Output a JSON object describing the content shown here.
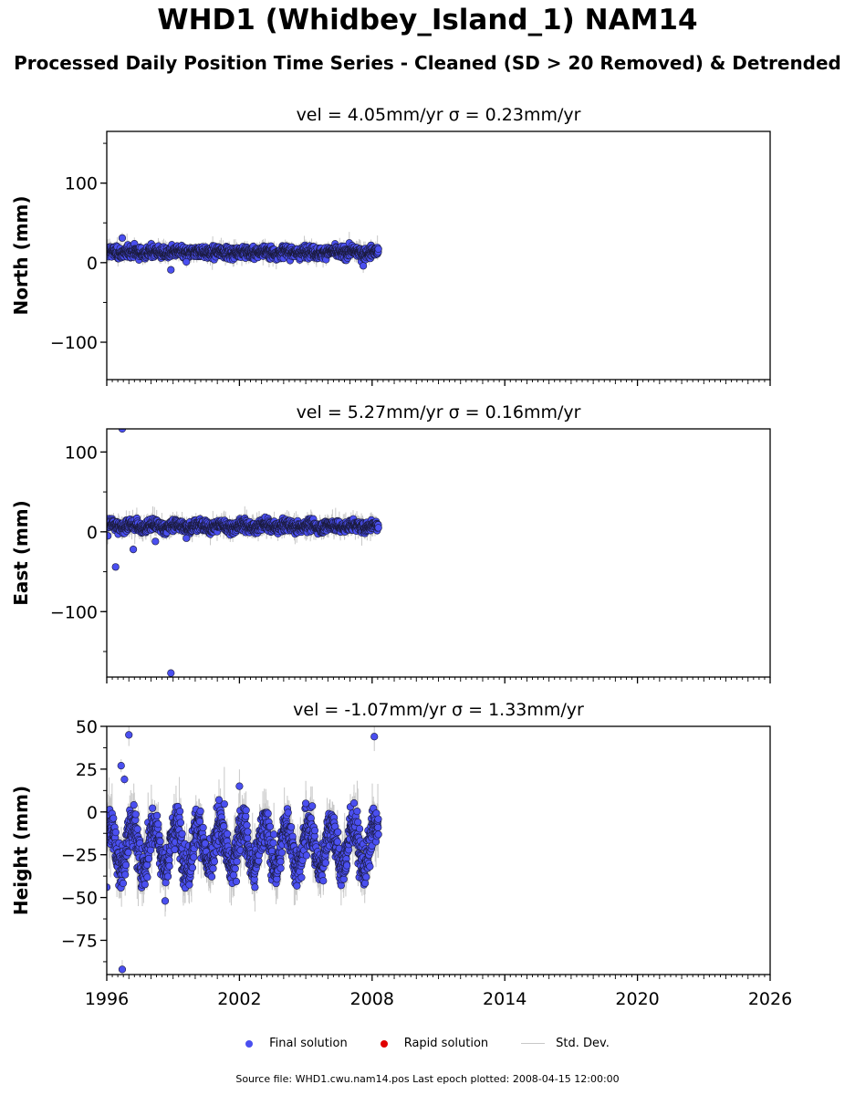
{
  "title": "WHD1 (Whidbey_Island_1) NAM14",
  "subtitle": "Processed Daily Position Time Series - Cleaned (SD > 20 Removed) & Detrended",
  "legend": {
    "final": {
      "label": "Final solution",
      "color": "#4a4ff0"
    },
    "rapid": {
      "label": "Rapid solution",
      "color": "#e00000"
    },
    "std": {
      "label": "Std. Dev.",
      "color": "#c8c8c8"
    }
  },
  "footer": "Source file: WHD1.cwu.nam14.pos  Last epoch plotted: 2008-04-15 12:00:00",
  "chart_data": [
    {
      "type": "scatter",
      "title": "vel = 4.05mm/yr   σ = 0.23mm/yr",
      "ylabel": "North (mm)",
      "xlim": [
        1996,
        2026
      ],
      "ylim": [
        -147,
        165
      ],
      "yticks": [
        -100,
        0,
        100
      ],
      "ytick_labels": [
        "−100",
        "0",
        "100"
      ],
      "data_range": [
        1996.0,
        2008.29
      ],
      "series_summary": {
        "mean": 13,
        "scatter_sd": 3.5,
        "seasonal_amp": 1.5,
        "error_bar_sd": 5
      },
      "outliers": [
        [
          1996.7,
          31
        ],
        [
          1998.9,
          -9
        ],
        [
          1999.6,
          1
        ],
        [
          2007.6,
          -4
        ]
      ]
    },
    {
      "type": "scatter",
      "title": "vel = 5.27mm/yr   σ = 0.16mm/yr",
      "ylabel": "East (mm)",
      "xlim": [
        1996,
        2026
      ],
      "ylim": [
        -182,
        129
      ],
      "yticks": [
        -100,
        0,
        100
      ],
      "ytick_labels": [
        "−100",
        "0",
        "100"
      ],
      "data_range": [
        1996.0,
        2008.29
      ],
      "series_summary": {
        "mean": 7,
        "scatter_sd": 3.5,
        "seasonal_amp": 2,
        "error_bar_sd": 6
      },
      "outliers": [
        [
          1996.7,
          129
        ],
        [
          1996.4,
          -44
        ],
        [
          1997.2,
          -22
        ],
        [
          1998.2,
          -12
        ],
        [
          1999.6,
          -8
        ],
        [
          1998.9,
          -177
        ],
        [
          1996.05,
          -5
        ]
      ]
    },
    {
      "type": "scatter",
      "title": "vel = -1.07mm/yr   σ = 1.33mm/yr",
      "ylabel": "Height (mm)",
      "xlim": [
        1996,
        2026
      ],
      "ylim": [
        -95,
        50
      ],
      "yticks": [
        -75,
        -50,
        -25,
        0,
        25,
        50
      ],
      "ytick_labels": [
        "−75",
        "−50",
        "−25",
        "0",
        "25",
        "50"
      ],
      "xticks": [
        1996,
        2002,
        2008,
        2014,
        2020,
        2026
      ],
      "xtick_labels": [
        "1996",
        "2002",
        "2008",
        "2014",
        "2020",
        "2026"
      ],
      "data_range": [
        1996.0,
        2008.29
      ],
      "series_summary": {
        "mean": -20,
        "scatter_sd": 6,
        "seasonal_amp": 13,
        "error_bar_sd": 8
      },
      "outliers": [
        [
          1996.0,
          -44
        ],
        [
          1996.65,
          27
        ],
        [
          1996.8,
          19
        ],
        [
          1997.0,
          45
        ],
        [
          1996.7,
          -92
        ],
        [
          2002.0,
          15
        ],
        [
          2005.0,
          5
        ],
        [
          2008.1,
          44
        ],
        [
          2002.7,
          -44
        ]
      ]
    }
  ]
}
